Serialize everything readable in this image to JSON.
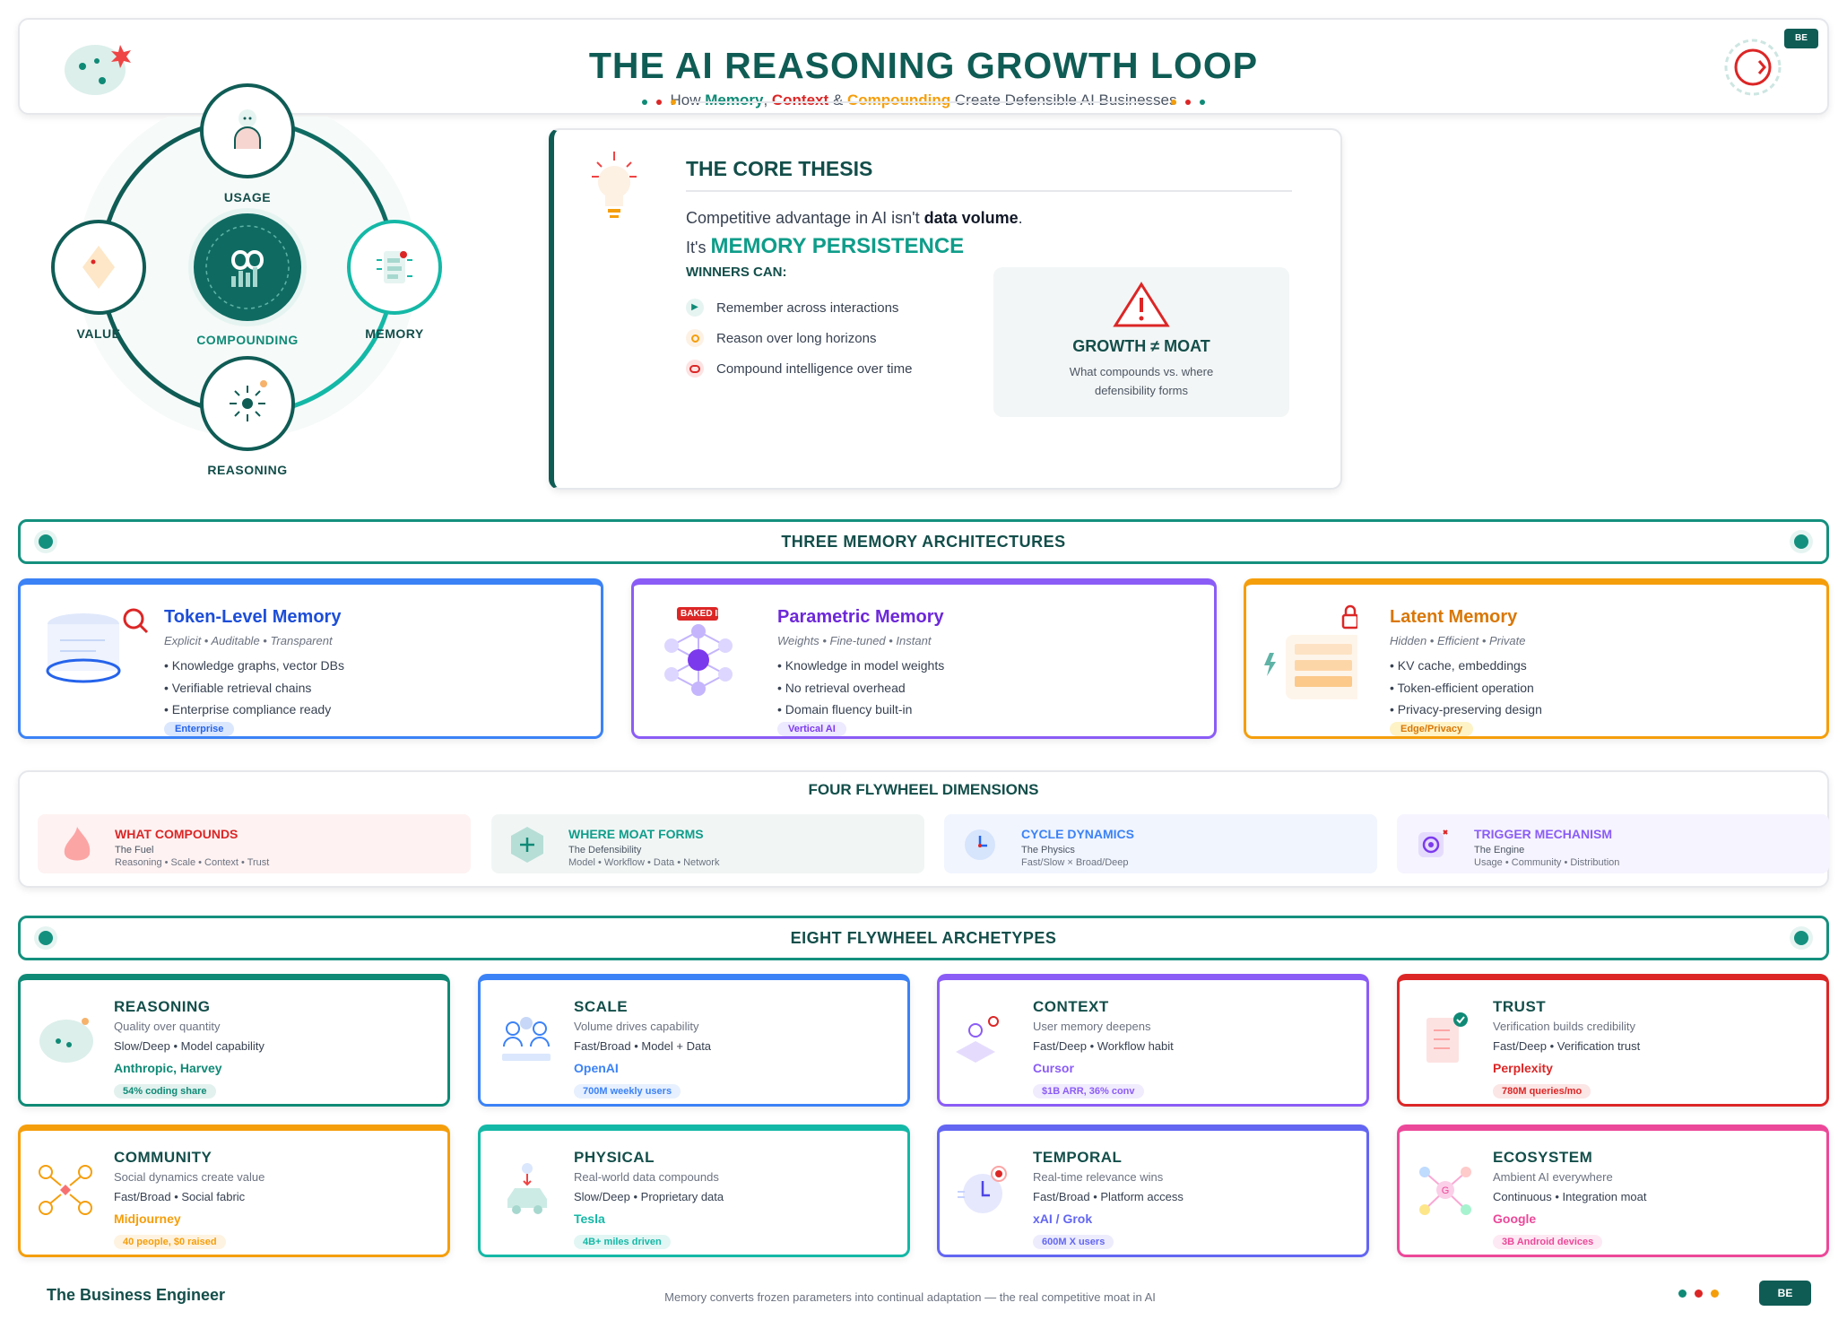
{
  "header": {
    "title": "THE AI REASONING GROWTH LOOP",
    "subtitle_prefix": "How ",
    "memory": "Memory",
    "sep1": ", ",
    "context": "Context",
    "sep2": " & ",
    "compounding": "Compounding",
    "subtitle_suffix": " Create Defensible AI Businesses",
    "badge": "BE"
  },
  "loop": {
    "nodes": {
      "usage": "USAGE",
      "value": "VALUE",
      "memory": "MEMORY",
      "reasoning": "REASONING",
      "center": "COMPOUNDING"
    }
  },
  "thesis": {
    "title": "THE CORE THESIS",
    "line1_a": "Competitive advantage in AI isn't ",
    "line1_b": "data volume",
    "line1_c": ".",
    "line2_a": "It's ",
    "line2_b": "MEMORY PERSISTENCE",
    "winners": "WINNERS CAN:",
    "bullets": [
      "Remember across interactions",
      "Reason over long horizons",
      "Compound intelligence over time"
    ],
    "box_title": "GROWTH ≠ MOAT",
    "box_text": "What compounds vs. where defensibility forms"
  },
  "sections": {
    "memory": "THREE MEMORY ARCHITECTURES",
    "dimensions": "FOUR FLYWHEEL DIMENSIONS",
    "archetypes": "EIGHT FLYWHEEL ARCHETYPES"
  },
  "memory_cards": [
    {
      "title": "Token-Level Memory",
      "sub": "Explicit • Auditable • Transparent",
      "bullets": [
        "• Knowledge graphs, vector DBs",
        "• Verifiable retrieval chains",
        "• Enterprise compliance ready"
      ],
      "tag": "Enterprise",
      "color": "#2563eb"
    },
    {
      "title": "Parametric Memory",
      "sub": "Weights • Fine-tuned • Instant",
      "bullets": [
        "• Knowledge in model weights",
        "• No retrieval overhead",
        "• Domain fluency built-in"
      ],
      "tag": "Vertical AI",
      "icon_badge": "BAKED IN",
      "color": "#7c3aed"
    },
    {
      "title": "Latent Memory",
      "sub": "Hidden • Efficient • Private",
      "bullets": [
        "• KV cache, embeddings",
        "• Token-efficient operation",
        "• Privacy-preserving design"
      ],
      "tag": "Edge/Privacy",
      "color": "#f59e0b"
    }
  ],
  "dimensions": [
    {
      "title": "WHAT COMPOUNDS",
      "sub": "The Fuel",
      "detail": "Reasoning • Scale • Context • Trust",
      "color": "#dc2626"
    },
    {
      "title": "WHERE MOAT FORMS",
      "sub": "The Defensibility",
      "detail": "Model • Workflow • Data • Network",
      "color": "#0f9d8a"
    },
    {
      "title": "CYCLE DYNAMICS",
      "sub": "The Physics",
      "detail": "Fast/Slow × Broad/Deep",
      "color": "#3b82f6"
    },
    {
      "title": "TRIGGER MECHANISM",
      "sub": "The Engine",
      "detail": "Usage • Community • Distribution",
      "color": "#8b5cf6"
    }
  ],
  "archetypes": [
    {
      "title": "REASONING",
      "sub": "Quality over quantity",
      "dyn": "Slow/Deep • Model capability",
      "example": "Anthropic, Harvey",
      "tag": "54% coding share",
      "color": "#0f8a76"
    },
    {
      "title": "SCALE",
      "sub": "Volume drives capability",
      "dyn": "Fast/Broad • Model + Data",
      "example": "OpenAI",
      "tag": "700M weekly users",
      "color": "#3b82f6"
    },
    {
      "title": "CONTEXT",
      "sub": "User memory deepens",
      "dyn": "Fast/Deep • Workflow habit",
      "example": "Cursor",
      "tag": "$1B ARR, 36% conv",
      "color": "#8b5cf6"
    },
    {
      "title": "TRUST",
      "sub": "Verification builds credibility",
      "dyn": "Fast/Deep • Verification trust",
      "example": "Perplexity",
      "tag": "780M queries/mo",
      "color": "#dc2626"
    },
    {
      "title": "COMMUNITY",
      "sub": "Social dynamics create value",
      "dyn": "Fast/Broad • Social fabric",
      "example": "Midjourney",
      "tag": "40 people, $0 raised",
      "color": "#f59e0b"
    },
    {
      "title": "PHYSICAL",
      "sub": "Real-world data compounds",
      "dyn": "Slow/Deep • Proprietary data",
      "example": "Tesla",
      "tag": "4B+ miles driven",
      "color": "#14b8a6"
    },
    {
      "title": "TEMPORAL",
      "sub": "Real-time relevance wins",
      "dyn": "Fast/Broad • Platform access",
      "example": "xAI / Grok",
      "tag": "600M X users",
      "color": "#6366f1"
    },
    {
      "title": "ECOSYSTEM",
      "sub": "Ambient AI everywhere",
      "dyn": "Continuous • Integration moat",
      "example": "Google",
      "tag": "3B Android devices",
      "color": "#ec4899"
    }
  ],
  "footer": {
    "brand": "The Business Engineer",
    "tagline": "Memory converts frozen parameters into continual adaptation — the real competitive moat in AI",
    "badge": "BE"
  }
}
